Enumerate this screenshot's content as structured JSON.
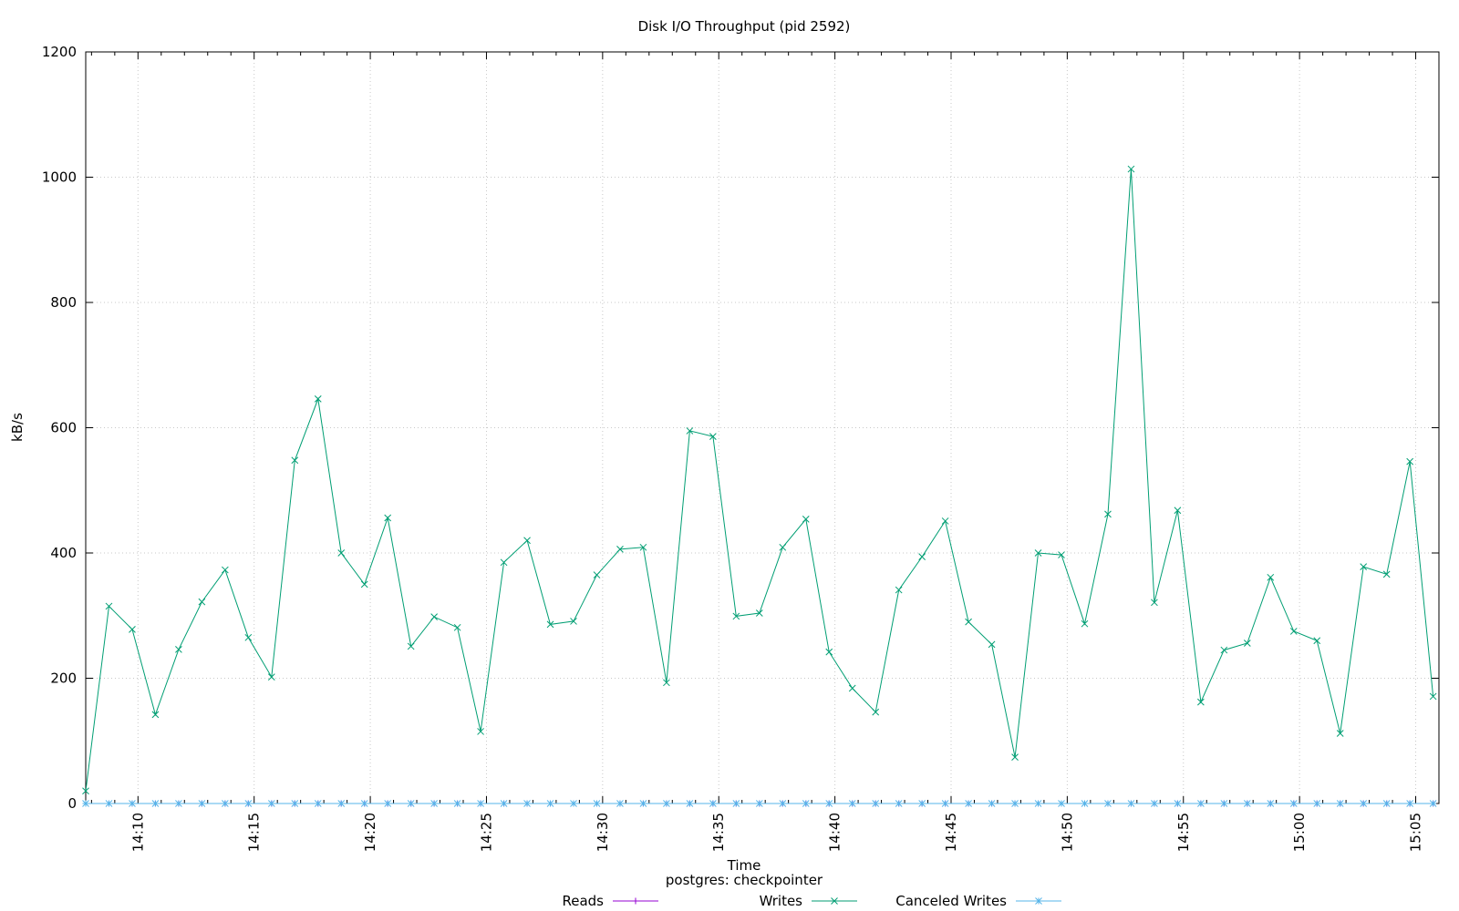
{
  "chart_data": {
    "type": "line",
    "title": "Disk I/O Throughput (pid 2592)",
    "xlabel": "Time",
    "subtitle": "postgres: checkpointer",
    "ylabel": "kB/s",
    "ylim": [
      0,
      1200
    ],
    "yticks": [
      0,
      200,
      400,
      600,
      800,
      1000,
      1200
    ],
    "xlim": [
      "14:07:45",
      "15:06:00"
    ],
    "xticks": [
      "14:10",
      "14:15",
      "14:20",
      "14:25",
      "14:30",
      "14:35",
      "14:40",
      "14:45",
      "14:50",
      "14:55",
      "15:00",
      "15:05"
    ],
    "grid": true,
    "legend_position": "bottom",
    "x": [
      "14:07:45",
      "14:08:45",
      "14:09:45",
      "14:10:45",
      "14:11:45",
      "14:12:45",
      "14:13:45",
      "14:14:45",
      "14:15:45",
      "14:16:45",
      "14:17:45",
      "14:18:45",
      "14:19:45",
      "14:20:45",
      "14:21:45",
      "14:22:45",
      "14:23:45",
      "14:24:45",
      "14:25:45",
      "14:26:45",
      "14:27:45",
      "14:28:45",
      "14:29:45",
      "14:30:45",
      "14:31:45",
      "14:32:45",
      "14:33:45",
      "14:34:45",
      "14:35:45",
      "14:36:45",
      "14:37:45",
      "14:38:45",
      "14:39:45",
      "14:40:45",
      "14:41:45",
      "14:42:45",
      "14:43:45",
      "14:44:45",
      "14:45:45",
      "14:46:45",
      "14:47:45",
      "14:48:45",
      "14:49:45",
      "14:50:45",
      "14:51:45",
      "14:52:45",
      "14:53:45",
      "14:54:45",
      "14:55:45",
      "14:56:45",
      "14:57:45",
      "14:58:45",
      "14:59:45",
      "15:00:45",
      "15:01:45",
      "15:02:45",
      "15:03:45",
      "15:04:45",
      "15:05:45"
    ],
    "series": [
      {
        "name": "Reads",
        "color": "#9400d3",
        "marker": "+",
        "values": [
          0,
          0,
          0,
          0,
          0,
          0,
          0,
          0,
          0,
          0,
          0,
          0,
          0,
          0,
          0,
          0,
          0,
          0,
          0,
          0,
          0,
          0,
          0,
          0,
          0,
          0,
          0,
          0,
          0,
          0,
          0,
          0,
          0,
          0,
          0,
          0,
          0,
          0,
          0,
          0,
          0,
          0,
          0,
          0,
          0,
          0,
          0,
          0,
          0,
          0,
          0,
          0,
          0,
          0,
          0,
          0,
          0,
          0,
          0
        ]
      },
      {
        "name": "Writes",
        "color": "#009e73",
        "marker": "x",
        "values": [
          20,
          315,
          278,
          142,
          246,
          322,
          373,
          265,
          202,
          548,
          646,
          400,
          350,
          456,
          251,
          298,
          281,
          115,
          385,
          420,
          286,
          291,
          365,
          406,
          409,
          193,
          595,
          586,
          299,
          304,
          409,
          454,
          242,
          184,
          146,
          341,
          394,
          451,
          290,
          254,
          74,
          400,
          397,
          287,
          462,
          1013,
          321,
          468,
          162,
          245,
          256,
          361,
          275,
          260,
          112,
          378,
          366,
          546,
          171
        ]
      },
      {
        "name": "Canceled Writes",
        "color": "#56b4e9",
        "marker": "*",
        "values": [
          0,
          0,
          0,
          0,
          0,
          0,
          0,
          0,
          0,
          0,
          0,
          0,
          0,
          0,
          0,
          0,
          0,
          0,
          0,
          0,
          0,
          0,
          0,
          0,
          0,
          0,
          0,
          0,
          0,
          0,
          0,
          0,
          0,
          0,
          0,
          0,
          0,
          0,
          0,
          0,
          0,
          0,
          0,
          0,
          0,
          0,
          0,
          0,
          0,
          0,
          0,
          0,
          0,
          0,
          0,
          0,
          0,
          0,
          0
        ]
      }
    ]
  }
}
